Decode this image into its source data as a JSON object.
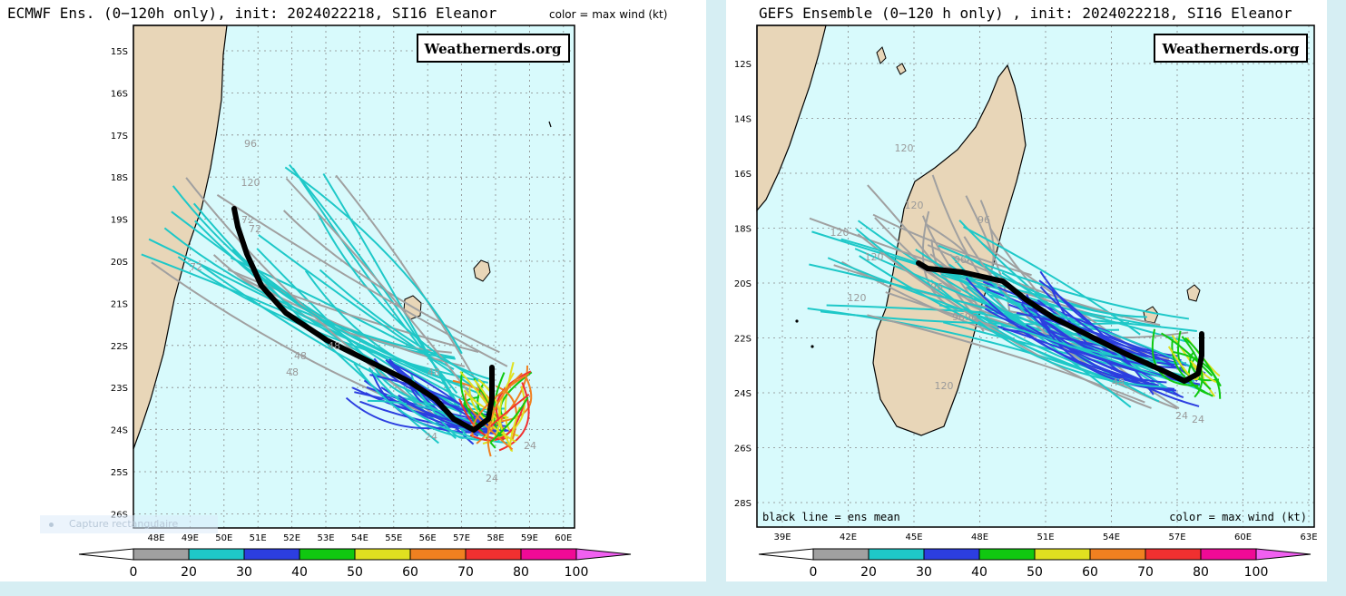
{
  "left_panel": {
    "title": "ECMWF Ens. (0−120h only), init: 2024022218, SI16 Eleanor",
    "color_note": "color = max wind (kt)",
    "watermark": "Weathernerds.org",
    "lat_labels": [
      "15S",
      "16S",
      "17S",
      "18S",
      "19S",
      "20S",
      "21S",
      "22S",
      "23S",
      "24S",
      "25S",
      "26S"
    ],
    "lon_labels": [
      "48E",
      "49E",
      "50E",
      "51E",
      "52E",
      "53E",
      "54E",
      "55E",
      "56E",
      "57E",
      "58E",
      "59E",
      "60E"
    ],
    "hour_labels": [
      "96",
      "120",
      "72",
      "72",
      "72",
      "48",
      "48",
      "48",
      "48",
      "24",
      "24",
      "24"
    ]
  },
  "right_panel": {
    "title": "GEFS Ensemble (0−120 h only) , init: 2024022218, SI16 Eleanor",
    "watermark": "Weathernerds.org",
    "mean_note": "black line = ens mean",
    "color_note": "color = max wind (kt)",
    "lat_labels": [
      "12S",
      "14S",
      "16S",
      "18S",
      "20S",
      "22S",
      "24S",
      "26S",
      "28S"
    ],
    "lon_labels": [
      "39E",
      "42E",
      "45E",
      "48E",
      "51E",
      "54E",
      "57E",
      "60E",
      "63E"
    ],
    "hour_labels": [
      "120",
      "120",
      "120",
      "120",
      "120",
      "120",
      "96",
      "96",
      "96",
      "96",
      "96",
      "48",
      "24",
      "24"
    ]
  },
  "colorbar": {
    "labels": [
      "0",
      "20",
      "30",
      "40",
      "50",
      "60",
      "70",
      "80",
      "100"
    ],
    "colors": [
      "#a0a0a0",
      "#1ec8c8",
      "#2c3ee0",
      "#10c810",
      "#e0e020",
      "#f08020",
      "#f03030",
      "#f00a96"
    ],
    "arrow_colors": {
      "low": "#ffffff",
      "high": "#f060f0"
    }
  },
  "map_colors": {
    "ocean": "#d8fafc",
    "land": "#e8d6b8",
    "mean_track": "#000000"
  },
  "overlay": {
    "capture_label": "Capture rectangulaire"
  }
}
